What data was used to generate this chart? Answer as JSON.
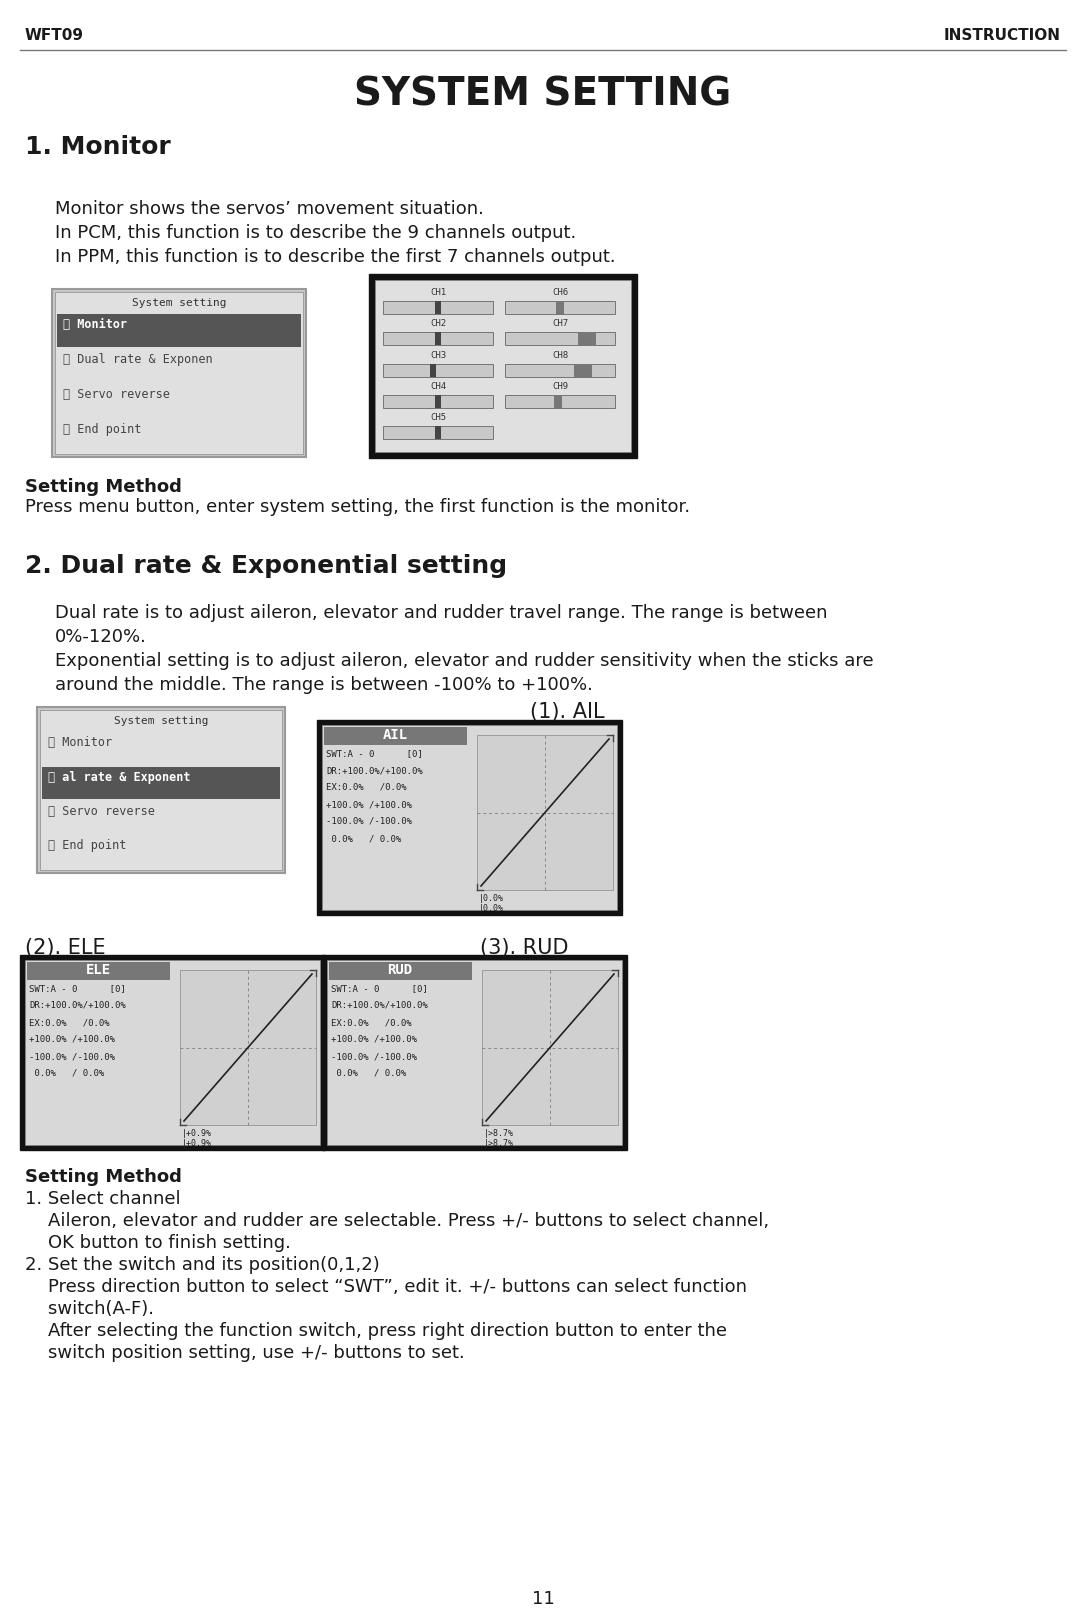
{
  "page_header_left": "WFT09",
  "page_header_right": "INSTRUCTION",
  "main_title": "SYSTEM SETTING",
  "section1_title": "1. Monitor",
  "section1_body": [
    "Monitor shows the servos’ movement situation.",
    "In PCM, this function is to describe the 9 channels output.",
    "In PPM, this function is to describe the first 7 channels output."
  ],
  "section1_setting_bold": "Setting Method",
  "section1_setting_text": "Press menu button, enter system setting, the first function is the monitor.",
  "section2_title": "2. Dual rate & Exponential setting",
  "section2_body": [
    "Dual rate is to adjust aileron, elevator and rudder travel range. The range is between",
    "0%-120%.",
    "Exponential setting is to adjust aileron, elevator and rudder sensitivity when the sticks are",
    "around the middle. The range is between -100% to +100%."
  ],
  "sub_label_AIL": "(1). AIL",
  "sub_label_ELE": "(2). ELE",
  "sub_label_RUD": "(3). RUD",
  "section2_setting_bold": "Setting Method",
  "section2_setting_lines": [
    "1. Select channel",
    "    Aileron, elevator and rudder are selectable. Press +/- buttons to select channel,",
    "    OK button to finish setting.",
    "2. Set the switch and its position(0,1,2)",
    "    Press direction button to select “SWT”, edit it. +/- buttons can select function",
    "    switch(A-F).",
    "    After selecting the function switch, press right direction button to enter the",
    "    switch position setting, use +/- buttons to set."
  ],
  "page_number": "11",
  "bg_color": "#ffffff",
  "text_color": "#1a1a1a"
}
